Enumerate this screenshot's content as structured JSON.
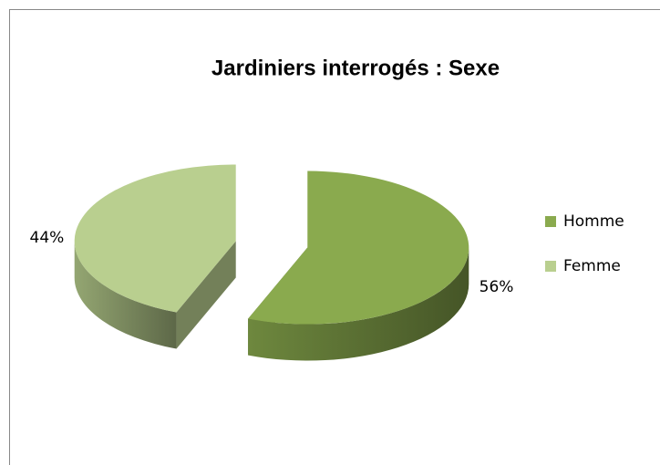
{
  "chart_data": {
    "type": "pie",
    "title": "Jardiniers interrogés : Sexe",
    "categories": [
      "Homme",
      "Femme"
    ],
    "values": [
      56,
      44
    ],
    "value_labels": [
      "56%",
      "44%"
    ],
    "colors": [
      "#8aaa4e",
      "#b9cf8f"
    ],
    "legend": "right"
  }
}
